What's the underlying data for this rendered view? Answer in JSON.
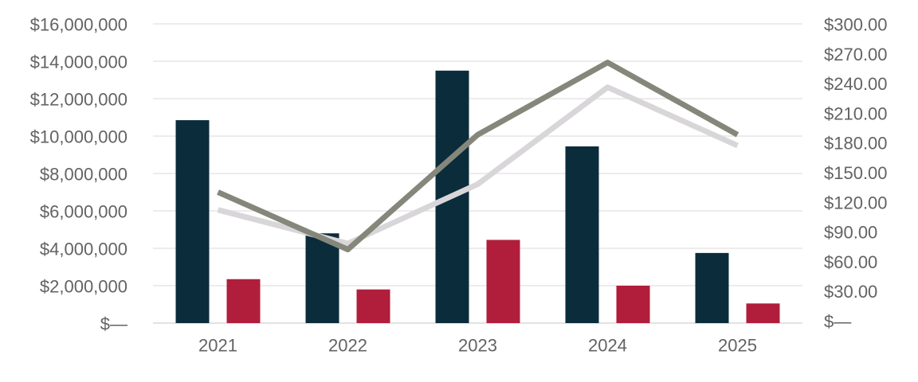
{
  "chart_data": {
    "type": "combo-bar-line",
    "title": "",
    "legend": "none",
    "grid": true,
    "categories": [
      "2021",
      "2022",
      "2023",
      "2024",
      "2025"
    ],
    "series": [
      {
        "name": "bars-navy",
        "type": "bar",
        "axis": "left",
        "color": "#0b2c3b",
        "values": [
          10850000,
          4800000,
          13500000,
          9450000,
          3750000
        ]
      },
      {
        "name": "bars-red",
        "type": "bar",
        "axis": "left",
        "color": "#b01e3c",
        "values": [
          2350000,
          1800000,
          4450000,
          2000000,
          1050000
        ]
      },
      {
        "name": "line-light-gray",
        "type": "line",
        "axis": "right",
        "color": "#d9d6d9",
        "values": [
          112,
          78,
          138,
          236,
          177
        ]
      },
      {
        "name": "line-dark-gray",
        "type": "line",
        "axis": "right",
        "color": "#85877b",
        "values": [
          130,
          72,
          188,
          261,
          188
        ]
      }
    ],
    "left_axis": {
      "min": 0,
      "max": 16000000,
      "step": 2000000,
      "ticks": [
        "$16,000,000",
        "$14,000,000",
        "$12,000,000",
        "$10,000,000",
        "$8,000,000",
        "$6,000,000",
        "$4,000,000",
        "$2,000,000",
        "$—"
      ]
    },
    "right_axis": {
      "min": 0,
      "max": 300,
      "step": 30,
      "ticks": [
        "$300.00",
        "$270.00",
        "$240.00",
        "$210.00",
        "$180.00",
        "$150.00",
        "$120.00",
        "$90.00",
        "$60.00",
        "$30.00",
        "$—"
      ]
    },
    "colors": {
      "background": "#ffffff",
      "gridline": "#ececec",
      "baseline": "#e2e2e2",
      "axis_text": "#636363"
    }
  }
}
